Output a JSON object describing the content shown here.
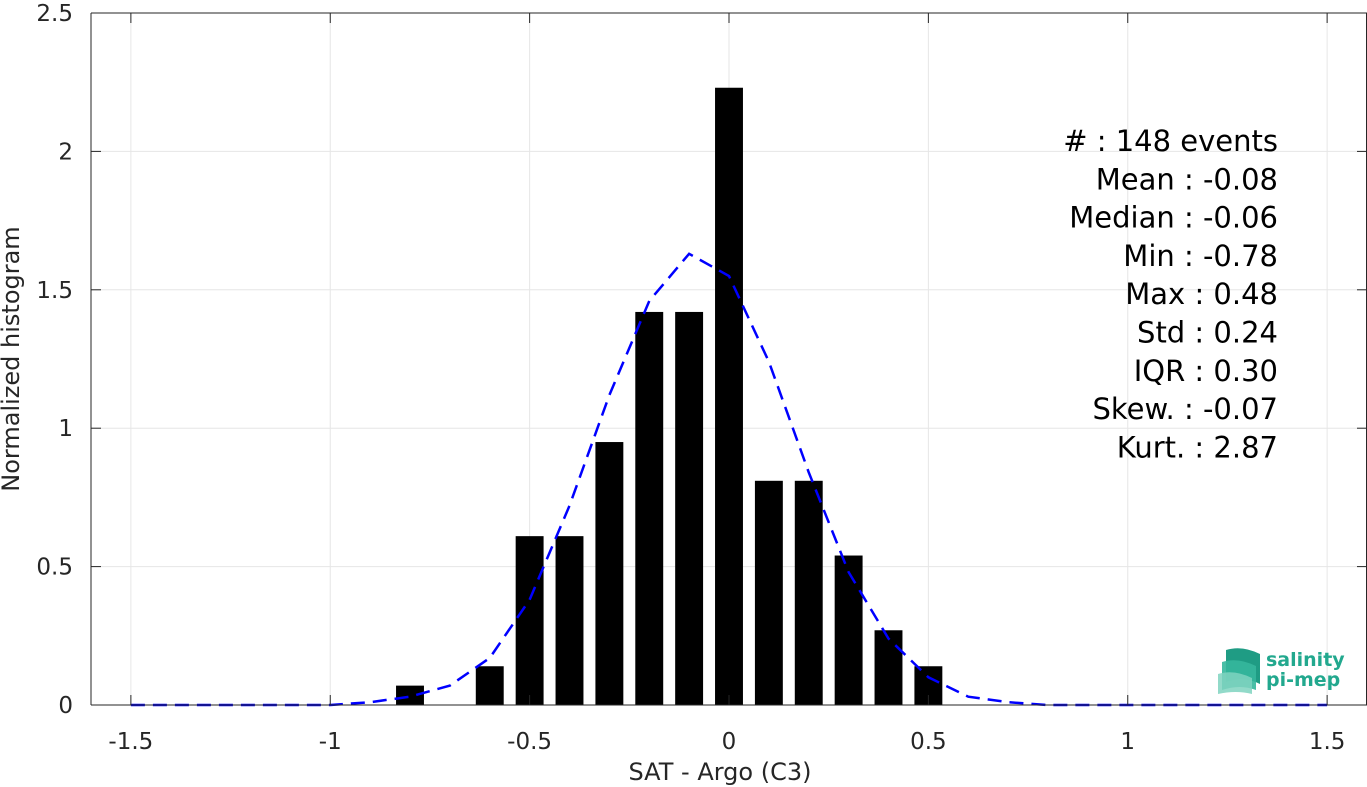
{
  "chart_data": {
    "type": "bar",
    "title": "",
    "xlabel": "SAT - Argo (C3)",
    "ylabel": "Normalized histogram",
    "xlim": [
      -1.6,
      1.6
    ],
    "ylim": [
      0,
      2.5
    ],
    "grid": true,
    "xticks": [
      -1.5,
      -1,
      -0.5,
      0,
      0.5,
      1,
      1.5
    ],
    "xtick_labels": [
      "-1.5",
      "-1",
      "-0.5",
      "0",
      "0.5",
      "1",
      "1.5"
    ],
    "yticks": [
      0,
      0.5,
      1,
      1.5,
      2,
      2.5
    ],
    "ytick_labels": [
      "0",
      "0.5",
      "1",
      "1.5",
      "2",
      "2.5"
    ],
    "bar_width": 0.07,
    "bars": {
      "x": [
        -0.8,
        -0.6,
        -0.5,
        -0.4,
        -0.3,
        -0.2,
        -0.1,
        0.0,
        0.1,
        0.2,
        0.3,
        0.4,
        0.5
      ],
      "values": [
        0.07,
        0.14,
        0.61,
        0.61,
        0.95,
        1.42,
        1.42,
        2.23,
        0.81,
        0.81,
        0.54,
        0.27,
        0.14
      ],
      "color": "#000000"
    },
    "fit_curve": {
      "style": "dashed",
      "color": "#0000ff",
      "x": [
        -1.5,
        -1.4,
        -1.3,
        -1.2,
        -1.1,
        -1.0,
        -0.9,
        -0.8,
        -0.7,
        -0.6,
        -0.5,
        -0.4,
        -0.3,
        -0.2,
        -0.1,
        0.0,
        0.1,
        0.2,
        0.3,
        0.4,
        0.5,
        0.6,
        0.7,
        0.8,
        0.9,
        1.0,
        1.1,
        1.2,
        1.3,
        1.4,
        1.5
      ],
      "y": [
        0,
        0,
        0,
        0,
        0,
        0,
        0.01,
        0.03,
        0.07,
        0.17,
        0.38,
        0.72,
        1.12,
        1.46,
        1.63,
        1.55,
        1.24,
        0.84,
        0.48,
        0.24,
        0.1,
        0.03,
        0.01,
        0,
        0,
        0,
        0,
        0,
        0,
        0,
        0
      ]
    },
    "stats": [
      {
        "label": "#  : 148 events"
      },
      {
        "label": "Mean : -0.08"
      },
      {
        "label": "Median : -0.06"
      },
      {
        "label": "Min : -0.78"
      },
      {
        "label": "Max : 0.48"
      },
      {
        "label": "Std : 0.24"
      },
      {
        "label": "IQR : 0.30"
      },
      {
        "label": "Skew. : -0.07"
      },
      {
        "label": "Kurt. : 2.87"
      }
    ]
  },
  "logo": {
    "line1": "salinity",
    "line2": "pi-mep",
    "color": "#22a88e"
  }
}
